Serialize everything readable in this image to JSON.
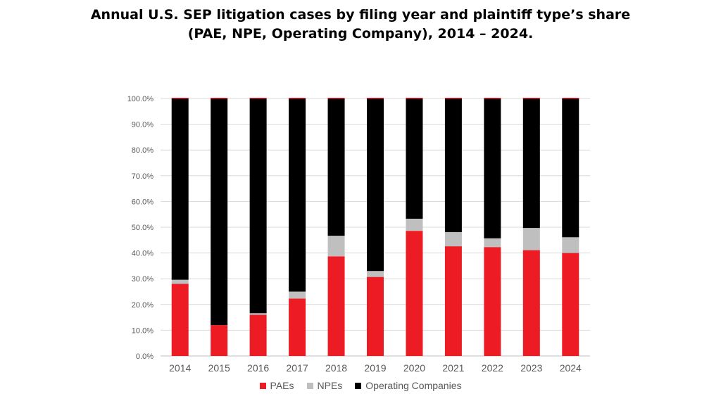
{
  "chart_data": {
    "type": "bar",
    "stacked": true,
    "title_line1": "Annual U.S. SEP litigation cases by filing year and plaintiff type’s share",
    "title_line2": "(PAE, NPE, Operating Company), 2014 – 2024.",
    "categories": [
      "2014",
      "2015",
      "2016",
      "2017",
      "2018",
      "2019",
      "2020",
      "2021",
      "2022",
      "2023",
      "2024"
    ],
    "series": [
      {
        "name": "PAEs",
        "color": "#ed1c24",
        "values": [
          28.0,
          12.0,
          16.0,
          22.3,
          38.7,
          30.7,
          48.6,
          42.6,
          42.3,
          41.1,
          40.0
        ]
      },
      {
        "name": "NPEs",
        "color": "#bfbfbf",
        "values": [
          1.6,
          0.0,
          0.6,
          2.7,
          8.0,
          2.3,
          4.7,
          5.5,
          3.4,
          8.6,
          6.1
        ]
      },
      {
        "name": "Operating Companies",
        "color": "#000000",
        "values": [
          70.4,
          88.0,
          83.4,
          75.0,
          53.3,
          67.0,
          46.7,
          51.9,
          54.3,
          50.3,
          53.9
        ]
      }
    ],
    "y_ticks": [
      "0.0%",
      "10.0%",
      "20.0%",
      "30.0%",
      "40.0%",
      "50.0%",
      "60.0%",
      "70.0%",
      "80.0%",
      "90.0%",
      "100.0%"
    ],
    "ylim": [
      0,
      100
    ],
    "grid": true,
    "legend_position": "bottom"
  }
}
